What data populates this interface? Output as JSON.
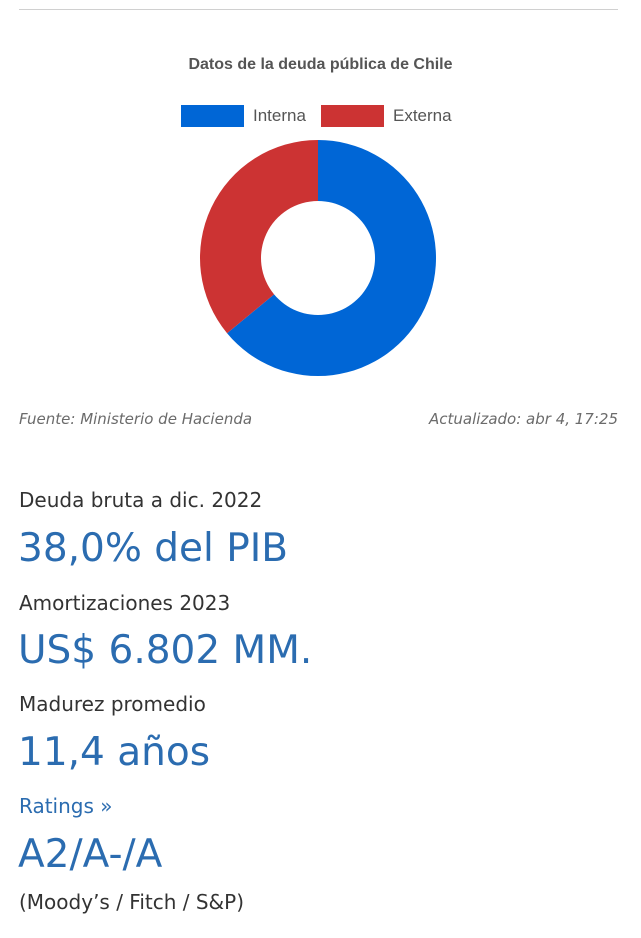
{
  "chart_data": {
    "type": "pie",
    "title": "Datos de la deuda pública de Chile",
    "donut": true,
    "series": [
      {
        "name": "Interna",
        "value": 64,
        "color": "#0066d6"
      },
      {
        "name": "Externa",
        "value": 36,
        "color": "#cc3333"
      }
    ],
    "legend_position": "top"
  },
  "footer": {
    "source": "Fuente: Ministerio de Hacienda",
    "updated": "Actualizado: abr 4, 17:25"
  },
  "stats": {
    "debt_label": "Deuda bruta a dic. 2022",
    "debt_value": "38,0% del PIB",
    "amort_label": "Amortizaciones 2023",
    "amort_value": "US$ 6.802 MM.",
    "maturity_label": "Madurez promedio",
    "maturity_value": "11,4 años",
    "ratings_label": "Ratings »",
    "ratings_value": "A2/A-/A",
    "ratings_agencies": "(Moody’s / Fitch / S&P)"
  }
}
